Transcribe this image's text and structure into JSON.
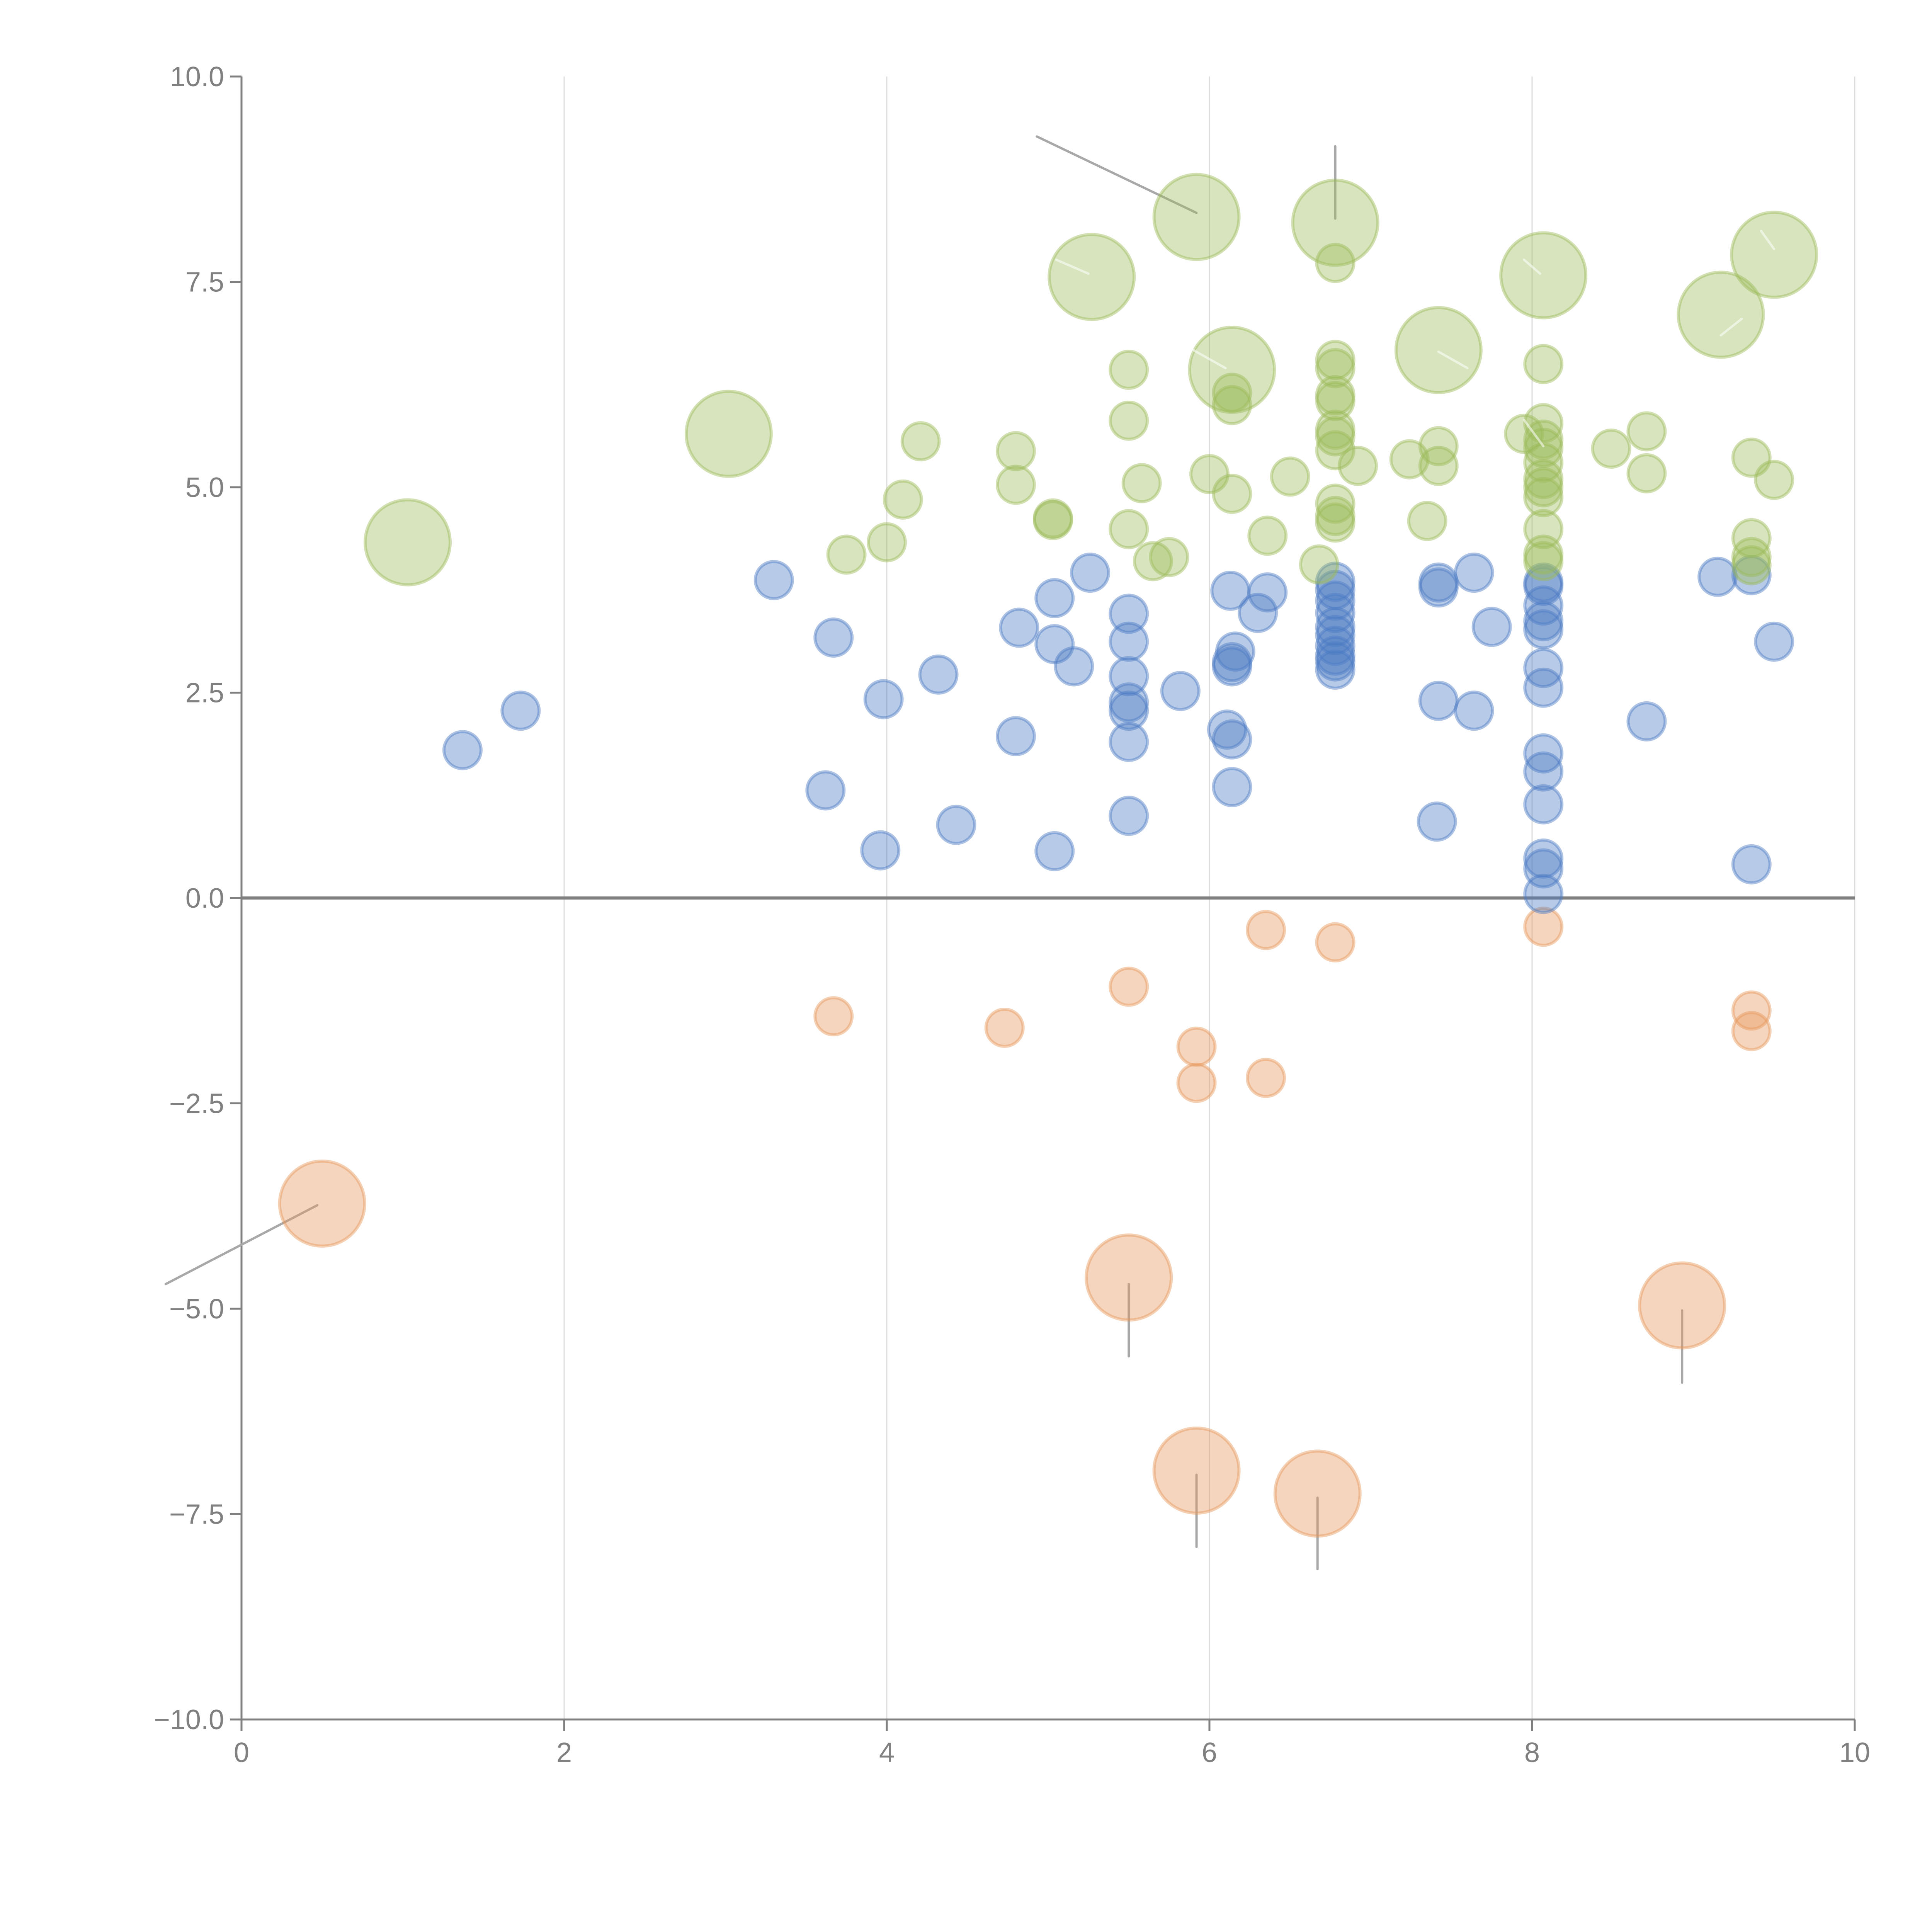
{
  "chart_data": {
    "type": "scatter",
    "subtype": "bubble",
    "title": "",
    "xlabel": "",
    "ylabel": "",
    "xlim": [
      0,
      10
    ],
    "ylim": [
      -10,
      10
    ],
    "x_ticks": [
      "0",
      "2",
      "4",
      "6",
      "8",
      "10"
    ],
    "y_ticks": [
      "10.0",
      "7.5",
      "5.0",
      "2.5",
      "0.0",
      "−2.5",
      "−5.0",
      "−7.5",
      "−10.0"
    ],
    "x_tick_values": [
      0,
      2,
      4,
      6,
      8,
      10
    ],
    "y_tick_values": [
      10,
      7.5,
      5,
      2.5,
      0,
      -2.5,
      -5,
      -7.5,
      -10
    ],
    "grid": "vertical",
    "zero_line": true,
    "legend": "none",
    "series": [
      {
        "name": "blue",
        "color": "#4c7ac4",
        "size": "small",
        "points": [
          [
            1.37,
            1.8
          ],
          [
            1.73,
            2.28
          ],
          [
            3.3,
            3.87
          ],
          [
            3.67,
            3.17
          ],
          [
            3.62,
            1.31
          ],
          [
            3.98,
            2.42
          ],
          [
            3.96,
            0.58
          ],
          [
            4.32,
            2.72
          ],
          [
            4.43,
            0.89
          ],
          [
            4.82,
            3.29
          ],
          [
            4.8,
            1.97
          ],
          [
            5.04,
            3.65
          ],
          [
            5.04,
            3.09
          ],
          [
            5.16,
            2.82
          ],
          [
            5.04,
            0.57
          ],
          [
            5.26,
            3.96
          ],
          [
            5.5,
            3.46
          ],
          [
            5.5,
            3.12
          ],
          [
            5.5,
            2.7
          ],
          [
            5.5,
            2.38
          ],
          [
            5.5,
            2.28
          ],
          [
            5.5,
            1.9
          ],
          [
            5.5,
            1.0
          ],
          [
            5.82,
            2.52
          ],
          [
            6.13,
            3.74
          ],
          [
            6.16,
            3.0
          ],
          [
            6.14,
            2.87
          ],
          [
            6.14,
            2.82
          ],
          [
            6.11,
            2.05
          ],
          [
            6.14,
            1.93
          ],
          [
            6.14,
            1.35
          ],
          [
            6.3,
            3.47
          ],
          [
            6.36,
            3.72
          ],
          [
            6.78,
            3.85
          ],
          [
            6.78,
            3.75
          ],
          [
            6.78,
            3.62
          ],
          [
            6.78,
            3.47
          ],
          [
            6.78,
            3.3
          ],
          [
            6.78,
            3.2
          ],
          [
            6.78,
            3.07
          ],
          [
            6.78,
            2.95
          ],
          [
            6.78,
            2.88
          ],
          [
            6.78,
            2.78
          ],
          [
            7.42,
            3.84
          ],
          [
            7.42,
            3.78
          ],
          [
            7.64,
            3.96
          ],
          [
            7.75,
            3.3
          ],
          [
            7.42,
            2.4
          ],
          [
            7.64,
            2.28
          ],
          [
            7.41,
            0.93
          ],
          [
            8.07,
            3.84
          ],
          [
            8.07,
            3.8
          ],
          [
            8.07,
            3.56
          ],
          [
            8.07,
            3.37
          ],
          [
            8.07,
            3.27
          ],
          [
            8.07,
            2.8
          ],
          [
            8.07,
            2.56
          ],
          [
            8.07,
            1.76
          ],
          [
            8.07,
            1.54
          ],
          [
            8.07,
            1.14
          ],
          [
            8.07,
            0.48
          ],
          [
            8.07,
            0.36
          ],
          [
            8.07,
            0.05
          ],
          [
            8.71,
            2.15
          ],
          [
            9.15,
            3.91
          ],
          [
            9.36,
            3.93
          ],
          [
            9.5,
            3.12
          ],
          [
            9.36,
            0.41
          ]
        ]
      },
      {
        "name": "green",
        "color": "#9bbb59",
        "size": "mixed",
        "points": [
          [
            1.03,
            4.33,
            "L"
          ],
          [
            3.02,
            5.65,
            "L"
          ],
          [
            3.75,
            4.18,
            "S"
          ],
          [
            4.0,
            4.33,
            "S"
          ],
          [
            4.1,
            4.85,
            "S"
          ],
          [
            4.21,
            5.56,
            "S"
          ],
          [
            4.8,
            5.44,
            "S"
          ],
          [
            4.8,
            5.03,
            "S"
          ],
          [
            5.03,
            4.62,
            "S"
          ],
          [
            5.03,
            4.6,
            "S"
          ],
          [
            5.27,
            7.56,
            "L"
          ],
          [
            5.5,
            6.43,
            "S"
          ],
          [
            5.5,
            5.81,
            "S"
          ],
          [
            5.58,
            5.05,
            "S"
          ],
          [
            5.5,
            4.49,
            "S"
          ],
          [
            5.65,
            4.1,
            "S"
          ],
          [
            5.75,
            4.15,
            "S"
          ],
          [
            5.92,
            8.29,
            "L"
          ],
          [
            6.0,
            5.16,
            "S"
          ],
          [
            6.14,
            6.43,
            "L"
          ],
          [
            6.14,
            6.15,
            "S"
          ],
          [
            6.14,
            6.0,
            "S"
          ],
          [
            6.14,
            4.92,
            "S"
          ],
          [
            6.36,
            4.41,
            "S"
          ],
          [
            6.5,
            5.13,
            "S"
          ],
          [
            6.68,
            4.06,
            "S"
          ],
          [
            6.78,
            8.22,
            "L"
          ],
          [
            6.78,
            7.73,
            "S"
          ],
          [
            6.78,
            6.55,
            "S"
          ],
          [
            6.78,
            6.45,
            "S"
          ],
          [
            6.78,
            6.12,
            "S"
          ],
          [
            6.78,
            6.05,
            "S"
          ],
          [
            6.78,
            5.7,
            "S"
          ],
          [
            6.78,
            5.62,
            "S"
          ],
          [
            6.78,
            5.45,
            "S"
          ],
          [
            6.78,
            4.8,
            "S"
          ],
          [
            6.78,
            4.65,
            "S"
          ],
          [
            6.78,
            4.57,
            "S"
          ],
          [
            6.92,
            5.26,
            "S"
          ],
          [
            7.24,
            5.34,
            "S"
          ],
          [
            7.35,
            4.59,
            "S"
          ],
          [
            7.42,
            6.67,
            "L"
          ],
          [
            7.42,
            5.5,
            "S"
          ],
          [
            7.42,
            5.26,
            "S"
          ],
          [
            7.95,
            5.65,
            "S"
          ],
          [
            8.07,
            7.58,
            "L"
          ],
          [
            8.07,
            6.5,
            "S"
          ],
          [
            8.07,
            5.78,
            "S"
          ],
          [
            8.07,
            5.58,
            "S"
          ],
          [
            8.07,
            5.48,
            "S"
          ],
          [
            8.07,
            5.3,
            "S"
          ],
          [
            8.07,
            5.1,
            "S"
          ],
          [
            8.07,
            5.0,
            "S"
          ],
          [
            8.07,
            4.88,
            "S"
          ],
          [
            8.07,
            4.49,
            "S"
          ],
          [
            8.07,
            4.18,
            "S"
          ],
          [
            8.07,
            4.1,
            "S"
          ],
          [
            8.49,
            5.47,
            "S"
          ],
          [
            8.71,
            5.68,
            "S"
          ],
          [
            8.71,
            5.17,
            "S"
          ],
          [
            9.17,
            7.1,
            "L"
          ],
          [
            9.36,
            5.36,
            "S"
          ],
          [
            9.36,
            4.38,
            "S"
          ],
          [
            9.36,
            4.15,
            "S"
          ],
          [
            9.36,
            4.05,
            "S"
          ],
          [
            9.5,
            7.83,
            "L"
          ],
          [
            9.5,
            5.09,
            "S"
          ]
        ]
      },
      {
        "name": "orange",
        "color": "#e6965a",
        "size": "mixed",
        "points": [
          [
            0.5,
            -3.72,
            "L"
          ],
          [
            3.67,
            -1.44,
            "S"
          ],
          [
            4.73,
            -1.58,
            "S"
          ],
          [
            5.5,
            -1.08,
            "S"
          ],
          [
            5.5,
            -4.62,
            "L"
          ],
          [
            5.92,
            -1.81,
            "S"
          ],
          [
            5.92,
            -2.25,
            "S"
          ],
          [
            5.92,
            -6.97,
            "L"
          ],
          [
            6.35,
            -0.39,
            "S"
          ],
          [
            6.35,
            -2.19,
            "S"
          ],
          [
            6.67,
            -7.25,
            "L"
          ],
          [
            6.78,
            -0.54,
            "S"
          ],
          [
            8.07,
            -0.35,
            "S"
          ],
          [
            8.93,
            -4.96,
            "L"
          ],
          [
            9.36,
            -1.37,
            "S"
          ],
          [
            9.36,
            -1.62,
            "S"
          ]
        ]
      }
    ],
    "annotation_leaders": [
      {
        "from": [
          4.93,
          9.27
        ],
        "to": [
          5.92,
          8.34
        ],
        "style": "gray"
      },
      {
        "from": [
          6.78,
          9.15
        ],
        "to": [
          6.78,
          8.27
        ],
        "style": "gray"
      },
      {
        "from": [
          -0.47,
          -4.7
        ],
        "to": [
          0.47,
          -3.74
        ],
        "style": "gray"
      },
      {
        "from": [
          5.5,
          -5.58
        ],
        "to": [
          5.5,
          -4.7
        ],
        "style": "gray"
      },
      {
        "from": [
          5.92,
          -7.9
        ],
        "to": [
          5.92,
          -7.02
        ],
        "style": "gray"
      },
      {
        "from": [
          6.67,
          -8.17
        ],
        "to": [
          6.67,
          -7.3
        ],
        "style": "gray"
      },
      {
        "from": [
          8.93,
          -5.9
        ],
        "to": [
          8.93,
          -5.02
        ],
        "style": "gray"
      },
      {
        "from": [
          5.05,
          7.77
        ],
        "to": [
          5.25,
          7.6
        ],
        "style": "light"
      },
      {
        "from": [
          5.9,
          6.67
        ],
        "to": [
          6.1,
          6.45
        ],
        "style": "light"
      },
      {
        "from": [
          7.42,
          6.65
        ],
        "to": [
          7.6,
          6.45
        ],
        "style": "light"
      },
      {
        "from": [
          7.95,
          7.77
        ],
        "to": [
          8.05,
          7.6
        ],
        "style": "light"
      },
      {
        "from": [
          9.3,
          7.05
        ],
        "to": [
          9.17,
          6.85
        ],
        "style": "light"
      },
      {
        "from": [
          9.42,
          8.12
        ],
        "to": [
          9.5,
          7.9
        ],
        "style": "light"
      },
      {
        "from": [
          7.95,
          5.82
        ],
        "to": [
          8.07,
          5.5
        ],
        "style": "light"
      }
    ]
  }
}
